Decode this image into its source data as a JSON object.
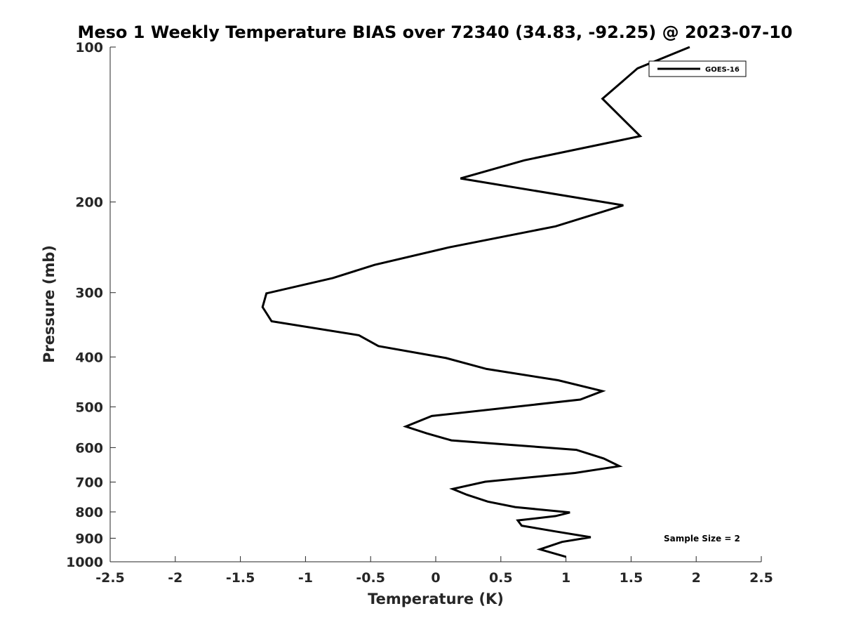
{
  "chart_data": {
    "type": "line",
    "title": "Meso 1 Weekly Temperature BIAS over 72340 (34.83, -92.25) @ 2023-07-10",
    "xlabel": "Temperature (K)",
    "ylabel": "Pressure (mb)",
    "xlim": [
      -2.5,
      2.5
    ],
    "ylim": [
      100,
      1000
    ],
    "y_scale": "log",
    "y_reversed": true,
    "x_ticks": [
      "-2.5",
      "-2",
      "-1.5",
      "-1",
      "-0.5",
      "0",
      "0.5",
      "1",
      "1.5",
      "2",
      "2.5"
    ],
    "y_ticks": [
      "100",
      "200",
      "300",
      "400",
      "500",
      "600",
      "700",
      "800",
      "900",
      "1000"
    ],
    "grid": false,
    "legend": {
      "position": "top-right",
      "entries": [
        "GOES-16"
      ]
    },
    "annotation": "Sample Size = 2",
    "series": [
      {
        "name": "GOES-16",
        "color": "#000000",
        "points": [
          [
            1.95,
            100
          ],
          [
            1.55,
            110
          ],
          [
            1.28,
            126
          ],
          [
            1.57,
            149
          ],
          [
            0.68,
            166
          ],
          [
            0.19,
            180
          ],
          [
            1.44,
            203
          ],
          [
            0.92,
            223
          ],
          [
            0.1,
            245
          ],
          [
            -0.47,
            265
          ],
          [
            -0.79,
            281
          ],
          [
            -1.3,
            301
          ],
          [
            -1.33,
            320
          ],
          [
            -1.26,
            341
          ],
          [
            -0.59,
            363
          ],
          [
            -0.44,
            381
          ],
          [
            0.08,
            402
          ],
          [
            0.39,
            422
          ],
          [
            0.94,
            444
          ],
          [
            1.28,
            466
          ],
          [
            1.11,
            484
          ],
          [
            -0.03,
            521
          ],
          [
            -0.23,
            546
          ],
          [
            -0.07,
            563
          ],
          [
            0.12,
            581
          ],
          [
            1.08,
            606
          ],
          [
            1.29,
            630
          ],
          [
            1.41,
            652
          ],
          [
            1.07,
            672
          ],
          [
            0.38,
            699
          ],
          [
            0.13,
            722
          ],
          [
            0.24,
            741
          ],
          [
            0.4,
            764
          ],
          [
            0.61,
            783
          ],
          [
            1.03,
            802
          ],
          [
            0.92,
            815
          ],
          [
            0.63,
            831
          ],
          [
            0.66,
            851
          ],
          [
            0.92,
            873
          ],
          [
            1.19,
            896
          ],
          [
            0.97,
            915
          ],
          [
            0.8,
            946
          ],
          [
            1.0,
            978
          ]
        ]
      }
    ]
  }
}
